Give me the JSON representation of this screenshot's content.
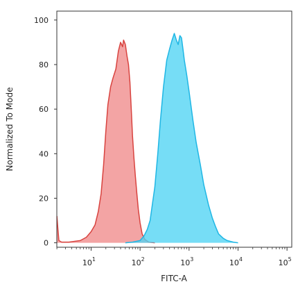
{
  "chart_data": {
    "type": "area",
    "xlabel": "FITC-A",
    "ylabel": "Normalized To Mode",
    "x_scale": "log",
    "xlim": [
      1.995,
      125000
    ],
    "ylim": [
      -2,
      104
    ],
    "grid": false,
    "legend": "none",
    "x_ticks": [
      {
        "value": 10,
        "base": "10",
        "exp": "1"
      },
      {
        "value": 100,
        "base": "10",
        "exp": "2"
      },
      {
        "value": 1000,
        "base": "10",
        "exp": "3"
      },
      {
        "value": 10000,
        "base": "10",
        "exp": "4"
      },
      {
        "value": 100000,
        "base": "10",
        "exp": "5"
      }
    ],
    "y_ticks": [
      "0",
      "20",
      "40",
      "60",
      "80",
      "100"
    ],
    "series": [
      {
        "fill": "#f08a8a",
        "stroke": "#d8433f",
        "points": [
          [
            2.0,
            12
          ],
          [
            2.1,
            6
          ],
          [
            2.2,
            1
          ],
          [
            2.5,
            0.3
          ],
          [
            3.5,
            0.3
          ],
          [
            6,
            1
          ],
          [
            8,
            2.5
          ],
          [
            10,
            5
          ],
          [
            12,
            8
          ],
          [
            14,
            14
          ],
          [
            16,
            22
          ],
          [
            18,
            35
          ],
          [
            20,
            50
          ],
          [
            22,
            62
          ],
          [
            25,
            70
          ],
          [
            28,
            74
          ],
          [
            32,
            78
          ],
          [
            36,
            86
          ],
          [
            40,
            90
          ],
          [
            44,
            88
          ],
          [
            46,
            91
          ],
          [
            50,
            89
          ],
          [
            54,
            84
          ],
          [
            58,
            80
          ],
          [
            62,
            72
          ],
          [
            66,
            60
          ],
          [
            70,
            48
          ],
          [
            75,
            38
          ],
          [
            80,
            30
          ],
          [
            86,
            22
          ],
          [
            92,
            15
          ],
          [
            100,
            9
          ],
          [
            110,
            4
          ],
          [
            125,
            1.5
          ],
          [
            150,
            0.3
          ],
          [
            200,
            0
          ]
        ]
      },
      {
        "fill": "#4fd4f4",
        "stroke": "#1fb6e4",
        "points": [
          [
            50,
            0
          ],
          [
            70,
            0.3
          ],
          [
            100,
            1
          ],
          [
            120,
            3
          ],
          [
            140,
            6
          ],
          [
            160,
            10
          ],
          [
            180,
            18
          ],
          [
            200,
            25
          ],
          [
            230,
            40
          ],
          [
            260,
            55
          ],
          [
            300,
            70
          ],
          [
            350,
            82
          ],
          [
            400,
            87
          ],
          [
            450,
            91
          ],
          [
            500,
            94
          ],
          [
            550,
            91
          ],
          [
            600,
            89
          ],
          [
            650,
            93
          ],
          [
            700,
            92
          ],
          [
            750,
            87
          ],
          [
            800,
            82
          ],
          [
            900,
            75
          ],
          [
            1000,
            68
          ],
          [
            1200,
            55
          ],
          [
            1400,
            45
          ],
          [
            1700,
            35
          ],
          [
            2000,
            26
          ],
          [
            2500,
            17
          ],
          [
            3000,
            11
          ],
          [
            3500,
            7
          ],
          [
            4000,
            4
          ],
          [
            5000,
            2
          ],
          [
            6000,
            1
          ],
          [
            8000,
            0.3
          ],
          [
            10000,
            0
          ]
        ]
      }
    ]
  }
}
